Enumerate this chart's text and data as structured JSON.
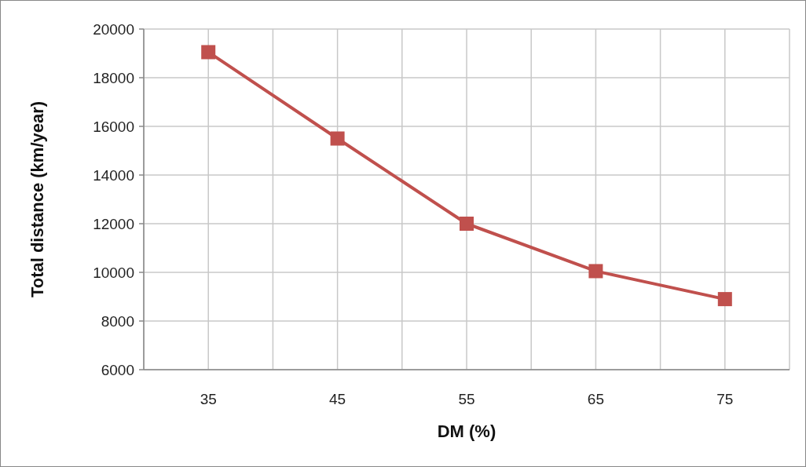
{
  "chart_data": {
    "type": "line",
    "xlabel": "DM (%)",
    "ylabel": "Total distance (km/year)",
    "x": [
      35,
      45,
      55,
      65,
      75
    ],
    "series": [
      {
        "color": "#c0504d",
        "values": [
          19050,
          15500,
          12000,
          10050,
          8900
        ]
      }
    ],
    "xlim": [
      30,
      80
    ],
    "xticks": [
      {
        "value": 30,
        "label": null
      },
      35,
      {
        "value": 40,
        "label": null
      },
      45,
      {
        "value": 50,
        "label": null
      },
      55,
      {
        "value": 60,
        "label": null
      },
      65,
      {
        "value": 70,
        "label": null
      },
      75,
      {
        "value": 80,
        "label": null
      }
    ],
    "ylim": [
      6000,
      20000
    ],
    "yticks": [
      6000,
      8000,
      10000,
      12000,
      14000,
      16000,
      18000,
      20000
    ],
    "grid": true,
    "marker": "square",
    "line_style": "solid"
  }
}
